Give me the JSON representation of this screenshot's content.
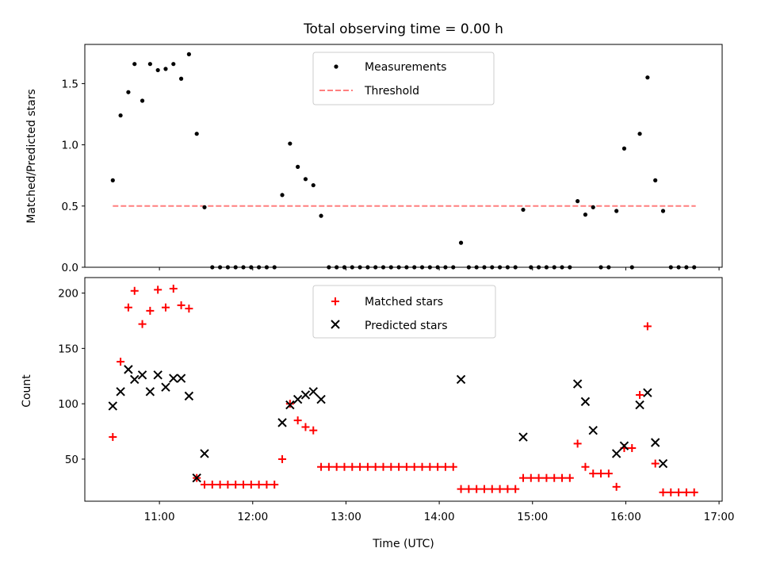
{
  "chart_data": [
    {
      "type": "scatter",
      "title": "Total observing time = 0.00 h",
      "ylabel": "Matched/Predicted stars",
      "xlabel": "",
      "x_ticks": [
        "11:00",
        "12:00",
        "13:00",
        "14:00",
        "15:00",
        "16:00",
        "17:00"
      ],
      "xlim": [
        "10:12",
        "17:02"
      ],
      "ylim": [
        0,
        1.82
      ],
      "y_ticks": [
        "0.0",
        "0.5",
        "1.0",
        "1.5"
      ],
      "legend_position": "upper center",
      "threshold": {
        "name": "Threshold",
        "value": 0.5,
        "x_start": "10:30",
        "x_end": "16:45",
        "color": "#ff7f7f"
      },
      "series": [
        {
          "name": "Measurements",
          "color": "#000000",
          "marker": "dot",
          "points": [
            [
              "10:30",
              0.71
            ],
            [
              "10:35",
              1.24
            ],
            [
              "10:40",
              1.43
            ],
            [
              "10:44",
              1.66
            ],
            [
              "10:49",
              1.36
            ],
            [
              "10:54",
              1.66
            ],
            [
              "10:59",
              1.61
            ],
            [
              "11:04",
              1.62
            ],
            [
              "11:09",
              1.66
            ],
            [
              "11:14",
              1.54
            ],
            [
              "11:19",
              1.74
            ],
            [
              "11:24",
              1.09
            ],
            [
              "11:29",
              0.49
            ],
            [
              "11:34",
              0.0
            ],
            [
              "11:39",
              0.0
            ],
            [
              "11:44",
              0.0
            ],
            [
              "11:49",
              0.0
            ],
            [
              "11:54",
              0.0
            ],
            [
              "11:59",
              0.0
            ],
            [
              "12:04",
              0.0
            ],
            [
              "12:09",
              0.0
            ],
            [
              "12:14",
              0.0
            ],
            [
              "12:19",
              0.59
            ],
            [
              "12:24",
              1.01
            ],
            [
              "12:29",
              0.82
            ],
            [
              "12:34",
              0.72
            ],
            [
              "12:39",
              0.67
            ],
            [
              "12:44",
              0.42
            ],
            [
              "12:49",
              0.0
            ],
            [
              "12:54",
              0.0
            ],
            [
              "12:59",
              0.0
            ],
            [
              "13:04",
              0.0
            ],
            [
              "13:09",
              0.0
            ],
            [
              "13:14",
              0.0
            ],
            [
              "13:19",
              0.0
            ],
            [
              "13:24",
              0.0
            ],
            [
              "13:29",
              0.0
            ],
            [
              "13:34",
              0.0
            ],
            [
              "13:39",
              0.0
            ],
            [
              "13:44",
              0.0
            ],
            [
              "13:49",
              0.0
            ],
            [
              "13:54",
              0.0
            ],
            [
              "13:59",
              0.0
            ],
            [
              "14:04",
              0.0
            ],
            [
              "14:09",
              0.0
            ],
            [
              "14:14",
              0.2
            ],
            [
              "14:19",
              0.0
            ],
            [
              "14:24",
              0.0
            ],
            [
              "14:29",
              0.0
            ],
            [
              "14:34",
              0.0
            ],
            [
              "14:39",
              0.0
            ],
            [
              "14:44",
              0.0
            ],
            [
              "14:49",
              0.0
            ],
            [
              "14:54",
              0.47
            ],
            [
              "14:59",
              0.0
            ],
            [
              "15:04",
              0.0
            ],
            [
              "15:09",
              0.0
            ],
            [
              "15:14",
              0.0
            ],
            [
              "15:19",
              0.0
            ],
            [
              "15:24",
              0.0
            ],
            [
              "15:29",
              0.54
            ],
            [
              "15:34",
              0.43
            ],
            [
              "15:39",
              0.49
            ],
            [
              "15:44",
              0.0
            ],
            [
              "15:49",
              0.0
            ],
            [
              "15:54",
              0.46
            ],
            [
              "15:59",
              0.97
            ],
            [
              "16:04",
              0.0
            ],
            [
              "16:09",
              1.09
            ],
            [
              "16:14",
              1.55
            ],
            [
              "16:19",
              0.71
            ],
            [
              "16:24",
              0.46
            ],
            [
              "16:29",
              0.0
            ],
            [
              "16:34",
              0.0
            ],
            [
              "16:39",
              0.0
            ],
            [
              "16:44",
              0.0
            ]
          ]
        },
        {
          "name": "Threshold",
          "color": "#ff7f7f",
          "marker": "dashed-line"
        }
      ]
    },
    {
      "type": "scatter",
      "title": "",
      "xlabel": "Time (UTC)",
      "ylabel": "Count",
      "x_ticks": [
        "11:00",
        "12:00",
        "13:00",
        "14:00",
        "15:00",
        "16:00",
        "17:00"
      ],
      "xlim": [
        "10:12",
        "17:02"
      ],
      "ylim": [
        12,
        214
      ],
      "y_ticks": [
        "50",
        "100",
        "150",
        "200"
      ],
      "legend_position": "upper center",
      "series": [
        {
          "name": "Matched stars",
          "color": "#ff0000",
          "marker": "plus",
          "points": [
            [
              "10:30",
              70
            ],
            [
              "10:35",
              138
            ],
            [
              "10:40",
              187
            ],
            [
              "10:44",
              202
            ],
            [
              "10:49",
              172
            ],
            [
              "10:54",
              184
            ],
            [
              "10:59",
              203
            ],
            [
              "11:04",
              187
            ],
            [
              "11:09",
              204
            ],
            [
              "11:14",
              189
            ],
            [
              "11:19",
              186
            ],
            [
              "11:24",
              33
            ],
            [
              "11:29",
              27
            ],
            [
              "11:34",
              27
            ],
            [
              "11:39",
              27
            ],
            [
              "11:44",
              27
            ],
            [
              "11:49",
              27
            ],
            [
              "11:54",
              27
            ],
            [
              "11:59",
              27
            ],
            [
              "12:04",
              27
            ],
            [
              "12:09",
              27
            ],
            [
              "12:14",
              27
            ],
            [
              "12:19",
              50
            ],
            [
              "12:24",
              100
            ],
            [
              "12:29",
              85
            ],
            [
              "12:34",
              79
            ],
            [
              "12:39",
              76
            ],
            [
              "12:44",
              43
            ],
            [
              "12:49",
              43
            ],
            [
              "12:54",
              43
            ],
            [
              "12:59",
              43
            ],
            [
              "13:04",
              43
            ],
            [
              "13:09",
              43
            ],
            [
              "13:14",
              43
            ],
            [
              "13:19",
              43
            ],
            [
              "13:24",
              43
            ],
            [
              "13:29",
              43
            ],
            [
              "13:34",
              43
            ],
            [
              "13:39",
              43
            ],
            [
              "13:44",
              43
            ],
            [
              "13:49",
              43
            ],
            [
              "13:54",
              43
            ],
            [
              "13:59",
              43
            ],
            [
              "14:04",
              43
            ],
            [
              "14:09",
              43
            ],
            [
              "14:14",
              23
            ],
            [
              "14:19",
              23
            ],
            [
              "14:24",
              23
            ],
            [
              "14:29",
              23
            ],
            [
              "14:34",
              23
            ],
            [
              "14:39",
              23
            ],
            [
              "14:44",
              23
            ],
            [
              "14:49",
              23
            ],
            [
              "14:54",
              33
            ],
            [
              "14:59",
              33
            ],
            [
              "15:04",
              33
            ],
            [
              "15:09",
              33
            ],
            [
              "15:14",
              33
            ],
            [
              "15:19",
              33
            ],
            [
              "15:24",
              33
            ],
            [
              "15:29",
              64
            ],
            [
              "15:34",
              43
            ],
            [
              "15:39",
              37
            ],
            [
              "15:44",
              37
            ],
            [
              "15:49",
              37
            ],
            [
              "15:54",
              25
            ],
            [
              "15:59",
              60
            ],
            [
              "16:04",
              60
            ],
            [
              "16:09",
              108
            ],
            [
              "16:14",
              170
            ],
            [
              "16:19",
              46
            ],
            [
              "16:24",
              20
            ],
            [
              "16:29",
              20
            ],
            [
              "16:34",
              20
            ],
            [
              "16:39",
              20
            ],
            [
              "16:44",
              20
            ]
          ]
        },
        {
          "name": "Predicted stars",
          "color": "#000000",
          "marker": "x",
          "points": [
            [
              "10:30",
              98
            ],
            [
              "10:35",
              111
            ],
            [
              "10:40",
              131
            ],
            [
              "10:44",
              122
            ],
            [
              "10:49",
              126
            ],
            [
              "10:54",
              111
            ],
            [
              "10:59",
              126
            ],
            [
              "11:04",
              115
            ],
            [
              "11:09",
              123
            ],
            [
              "11:14",
              123
            ],
            [
              "11:19",
              107
            ],
            [
              "11:24",
              33
            ],
            [
              "11:29",
              55
            ],
            [
              "12:19",
              83
            ],
            [
              "12:24",
              99
            ],
            [
              "12:29",
              104
            ],
            [
              "12:34",
              108
            ],
            [
              "12:39",
              111
            ],
            [
              "12:44",
              104
            ],
            [
              "14:14",
              122
            ],
            [
              "14:54",
              70
            ],
            [
              "15:29",
              118
            ],
            [
              "15:34",
              102
            ],
            [
              "15:39",
              76
            ],
            [
              "15:54",
              55
            ],
            [
              "15:59",
              62
            ],
            [
              "16:09",
              99
            ],
            [
              "16:14",
              110
            ],
            [
              "16:19",
              65
            ],
            [
              "16:24",
              46
            ]
          ]
        }
      ]
    }
  ]
}
